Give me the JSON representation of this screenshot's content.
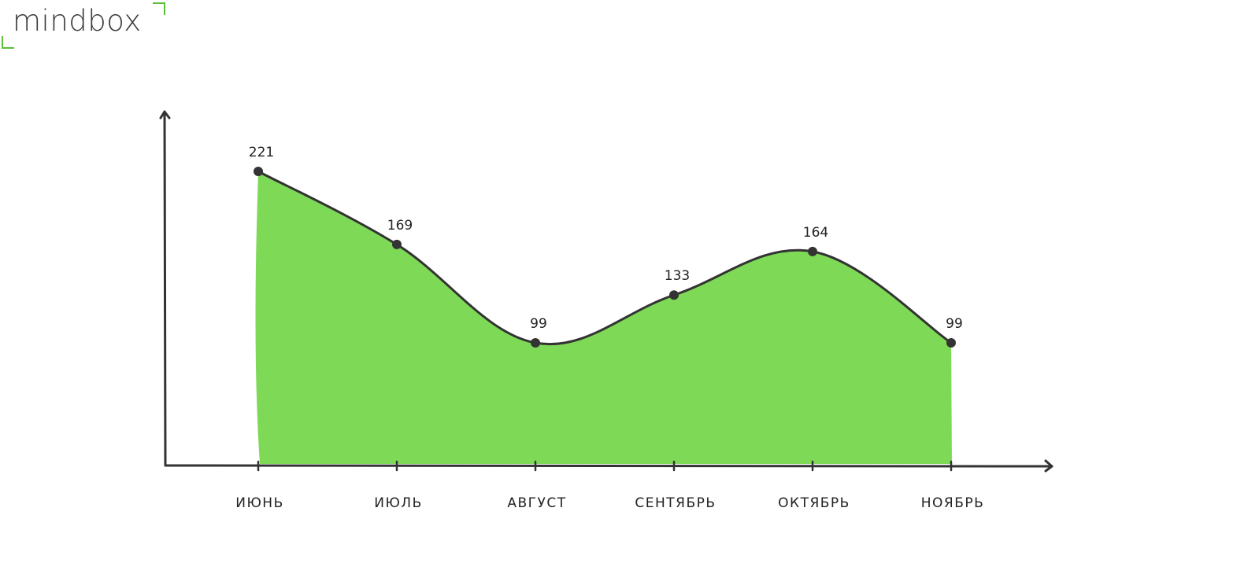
{
  "logo": {
    "text": "mindbox",
    "accent_color": "#5cc03a"
  },
  "chart_data": {
    "type": "area",
    "categories": [
      "ИЮНЬ",
      "ИЮЛЬ",
      "АВГУСТ",
      "СЕНТЯБРЬ",
      "ОКТЯБРЬ",
      "НОЯБРЬ"
    ],
    "values": [
      221,
      169,
      99,
      133,
      164,
      99
    ],
    "title": "",
    "xlabel": "",
    "ylabel": "",
    "ylim": [
      0,
      240
    ],
    "grid": false,
    "legend": "none",
    "colors": {
      "fill": "#7ed957",
      "line": "#333333",
      "axis": "#333333",
      "point": "#333333"
    }
  }
}
